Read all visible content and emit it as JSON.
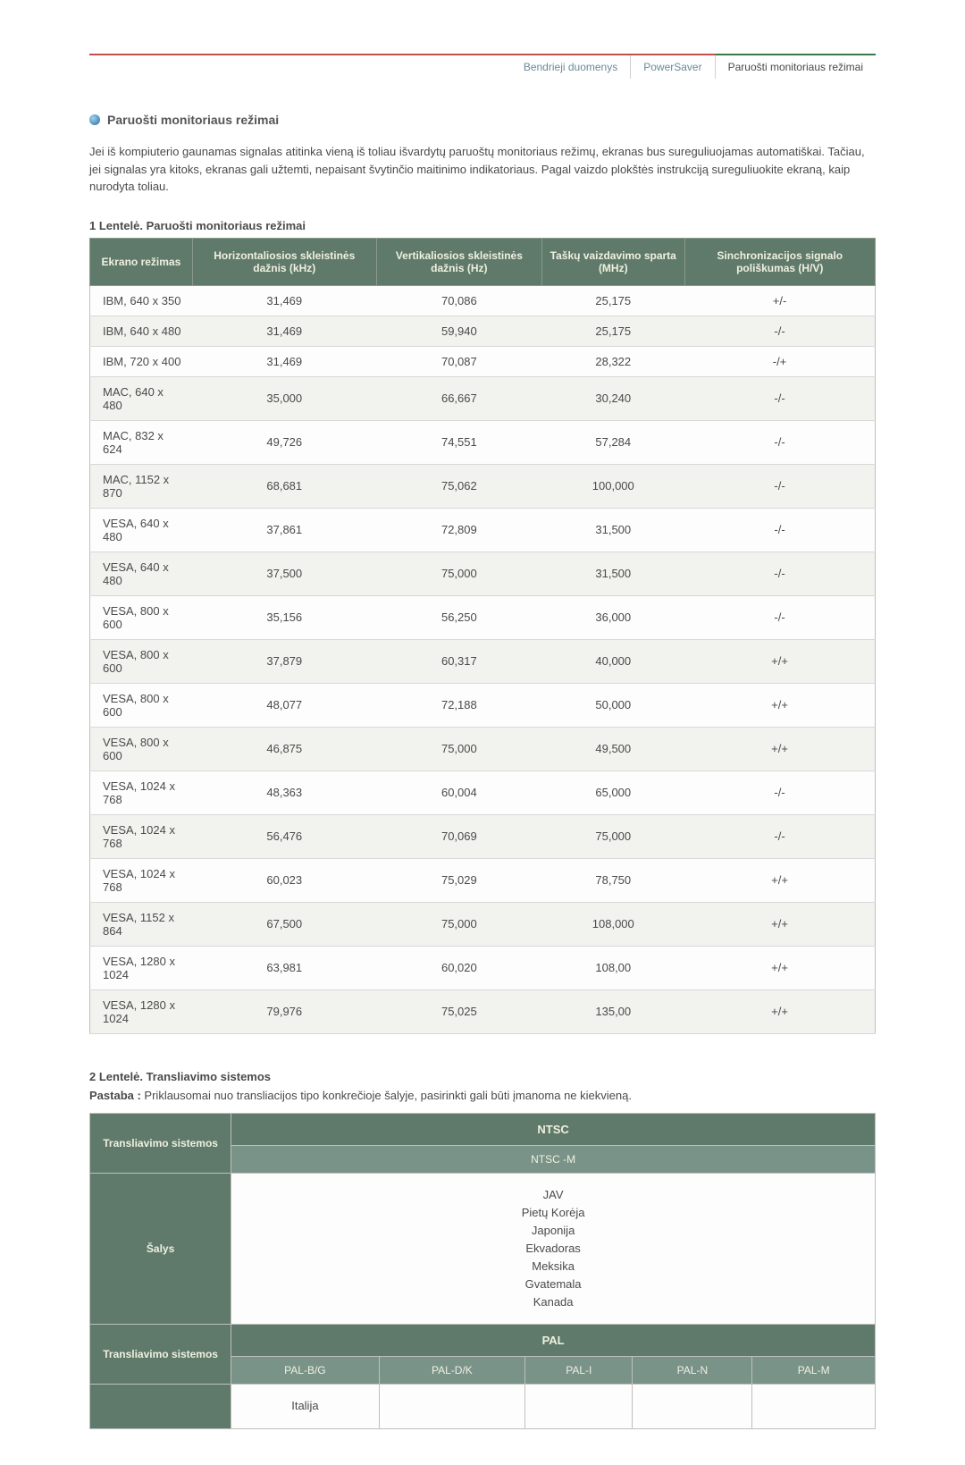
{
  "tabs": {
    "general": "Bendrieji duomenys",
    "powersaver": "PowerSaver",
    "preset": "Paruošti monitoriaus režimai"
  },
  "section": {
    "title": "Paruošti monitoriaus režimai",
    "intro": "Jei iš kompiuterio gaunamas signalas atitinka vieną iš toliau išvardytų paruoštų monitoriaus režimų, ekranas bus sureguliuojamas automatiškai. Tačiau, jei signalas yra kitoks, ekranas gali užtemti, nepaisant švytinčio maitinimo indikatoriaus. Pagal vaizdo plokštės instrukciją sureguliuokite ekraną, kaip nurodyta toliau."
  },
  "table1": {
    "caption": "1 Lentelė. Paruošti monitoriaus režimai",
    "headers": {
      "mode": "Ekrano režimas",
      "h": "Horizontaliosios skleistinės dažnis (kHz)",
      "v": "Vertikaliosios skleistinės dažnis (Hz)",
      "pixel": "Taškų vaizdavimo sparta (MHz)",
      "sync": "Sinchronizacijos signalo poliškumas (H/V)"
    },
    "rows": [
      [
        "IBM, 640 x 350",
        "31,469",
        "70,086",
        "25,175",
        "+/-"
      ],
      [
        "IBM, 640 x 480",
        "31,469",
        "59,940",
        "25,175",
        "-/-"
      ],
      [
        "IBM, 720 x 400",
        "31,469",
        "70,087",
        "28,322",
        "-/+"
      ],
      [
        "MAC, 640 x 480",
        "35,000",
        "66,667",
        "30,240",
        "-/-"
      ],
      [
        "MAC, 832 x 624",
        "49,726",
        "74,551",
        "57,284",
        "-/-"
      ],
      [
        "MAC, 1152 x 870",
        "68,681",
        "75,062",
        "100,000",
        "-/-"
      ],
      [
        "VESA, 640 x 480",
        "37,861",
        "72,809",
        "31,500",
        "-/-"
      ],
      [
        "VESA, 640 x 480",
        "37,500",
        "75,000",
        "31,500",
        "-/-"
      ],
      [
        "VESA, 800 x 600",
        "35,156",
        "56,250",
        "36,000",
        "-/-"
      ],
      [
        "VESA, 800 x 600",
        "37,879",
        "60,317",
        "40,000",
        "+/+"
      ],
      [
        "VESA, 800 x 600",
        "48,077",
        "72,188",
        "50,000",
        "+/+"
      ],
      [
        "VESA, 800 x 600",
        "46,875",
        "75,000",
        "49,500",
        "+/+"
      ],
      [
        "VESA, 1024 x 768",
        "48,363",
        "60,004",
        "65,000",
        "-/-"
      ],
      [
        "VESA, 1024 x 768",
        "56,476",
        "70,069",
        "75,000",
        "-/-"
      ],
      [
        "VESA, 1024 x 768",
        "60,023",
        "75,029",
        "78,750",
        "+/+"
      ],
      [
        "VESA, 1152 x 864",
        "67,500",
        "75,000",
        "108,000",
        "+/+"
      ],
      [
        "VESA, 1280 x 1024",
        "63,981",
        "60,020",
        "108,00",
        "+/+"
      ],
      [
        "VESA, 1280 x 1024",
        "79,976",
        "75,025",
        "135,00",
        "+/+"
      ]
    ]
  },
  "table2": {
    "caption": "2 Lentelė. Transliavimo sistemos",
    "note_label": "Pastaba :",
    "note_text": " Priklausomai nuo transliacijos tipo konkrečioje šalyje, pasirinkti gali būti įmanoma ne kiekvieną.",
    "rowhead_systems": "Transliavimo sistemos",
    "rowhead_countries": "Šalys",
    "ntsc": "NTSC",
    "ntsc_m": "NTSC -M",
    "countries_ntsc": [
      "JAV",
      "Pietų Korėja",
      "Japonija",
      "Ekvadoras",
      "Meksika",
      "Gvatemala",
      "Kanada"
    ],
    "pal": "PAL",
    "pal_cols": [
      "PAL-B/G",
      "PAL-D/K",
      "PAL-I",
      "PAL-N",
      "PAL-M"
    ],
    "pal_row1": [
      "Italija",
      "",
      "",
      "",
      ""
    ]
  },
  "colors": {
    "header_bg": "#5f7a6a",
    "subheader_bg": "#7a9388",
    "header_text": "#f0f0e0",
    "border": "#bfbfbf",
    "row_alt": "#f2f2ee",
    "accent_top": "#c0504d",
    "tab_active": "#3a7a4a"
  }
}
